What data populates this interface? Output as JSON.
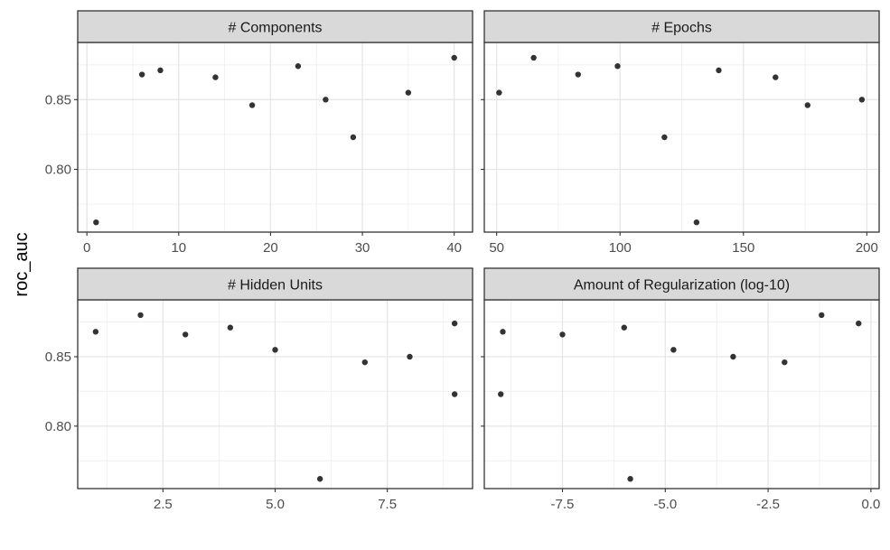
{
  "chart_data": {
    "type": "scatter",
    "ylabel": "roc_auc",
    "ylim": [
      0.755,
      0.891
    ],
    "yticks": [
      0.8,
      0.85
    ],
    "ytick_labels": [
      "0.80",
      "0.85"
    ],
    "grid": true,
    "point_color": "#333333",
    "panels": [
      {
        "title": "# Components",
        "xlim": [
          -1,
          42
        ],
        "xticks": [
          0,
          10,
          20,
          30,
          40
        ],
        "xtick_labels": [
          "0",
          "10",
          "20",
          "30",
          "40"
        ],
        "points": [
          {
            "x": 1,
            "y": 0.762
          },
          {
            "x": 6,
            "y": 0.868
          },
          {
            "x": 8,
            "y": 0.871
          },
          {
            "x": 14,
            "y": 0.866
          },
          {
            "x": 18,
            "y": 0.846
          },
          {
            "x": 23,
            "y": 0.874
          },
          {
            "x": 26,
            "y": 0.85
          },
          {
            "x": 29,
            "y": 0.823
          },
          {
            "x": 35,
            "y": 0.855
          },
          {
            "x": 40,
            "y": 0.88
          }
        ]
      },
      {
        "title": "# Epochs",
        "xlim": [
          45,
          205
        ],
        "xticks": [
          50,
          100,
          150,
          200
        ],
        "xtick_labels": [
          "50",
          "100",
          "150",
          "200"
        ],
        "points": [
          {
            "x": 51,
            "y": 0.855
          },
          {
            "x": 65,
            "y": 0.88
          },
          {
            "x": 83,
            "y": 0.868
          },
          {
            "x": 99,
            "y": 0.874
          },
          {
            "x": 118,
            "y": 0.823
          },
          {
            "x": 131,
            "y": 0.762
          },
          {
            "x": 140,
            "y": 0.871
          },
          {
            "x": 163,
            "y": 0.866
          },
          {
            "x": 176,
            "y": 0.846
          },
          {
            "x": 198,
            "y": 0.85
          }
        ]
      },
      {
        "title": "# Hidden Units",
        "xlim": [
          0.6,
          9.4
        ],
        "xticks": [
          2.5,
          5.0,
          7.5
        ],
        "xtick_labels": [
          "2.5",
          "5.0",
          "7.5"
        ],
        "points": [
          {
            "x": 1,
            "y": 0.868
          },
          {
            "x": 2,
            "y": 0.88
          },
          {
            "x": 3,
            "y": 0.866
          },
          {
            "x": 4,
            "y": 0.871
          },
          {
            "x": 5,
            "y": 0.855
          },
          {
            "x": 6,
            "y": 0.762
          },
          {
            "x": 7,
            "y": 0.846
          },
          {
            "x": 8,
            "y": 0.85
          },
          {
            "x": 9,
            "y": 0.874
          },
          {
            "x": 9,
            "y": 0.823
          }
        ]
      },
      {
        "title": "Amount of Regularization (log-10)",
        "xlim": [
          -9.4,
          0.2
        ],
        "xticks": [
          -7.5,
          -5.0,
          -2.5,
          0.0
        ],
        "xtick_labels": [
          "-7.5",
          "-5.0",
          "-2.5",
          "0.0"
        ],
        "points": [
          {
            "x": -9.0,
            "y": 0.823
          },
          {
            "x": -8.95,
            "y": 0.868
          },
          {
            "x": -7.5,
            "y": 0.866
          },
          {
            "x": -6.0,
            "y": 0.871
          },
          {
            "x": -5.85,
            "y": 0.762
          },
          {
            "x": -4.8,
            "y": 0.855
          },
          {
            "x": -3.35,
            "y": 0.85
          },
          {
            "x": -2.1,
            "y": 0.846
          },
          {
            "x": -1.2,
            "y": 0.88
          },
          {
            "x": -0.3,
            "y": 0.874
          }
        ]
      }
    ]
  }
}
